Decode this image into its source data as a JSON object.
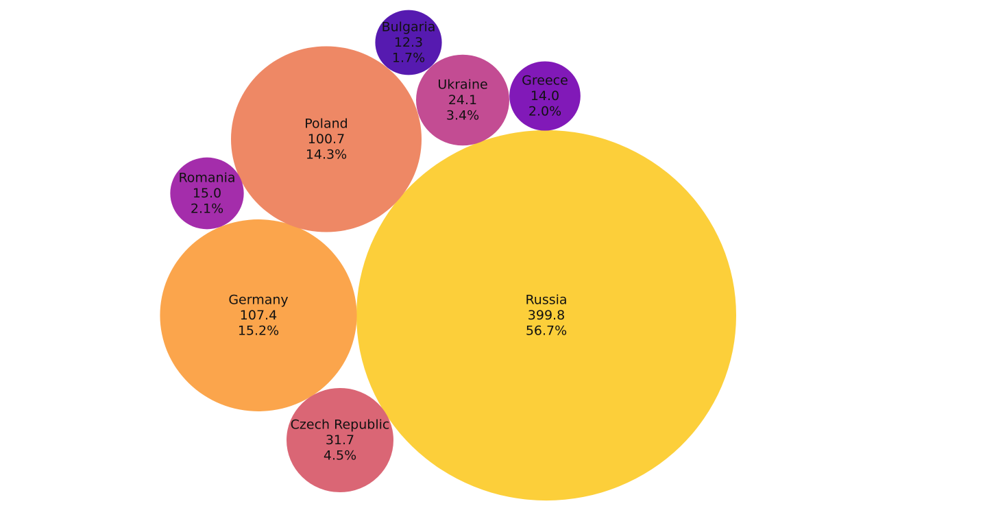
{
  "chart_data": {
    "type": "bubble",
    "title": "",
    "bubbles": [
      {
        "label": "Russia",
        "value": 399.8,
        "percent": "56.7%",
        "color": "#fccf3a"
      },
      {
        "label": "Germany",
        "value": 107.4,
        "percent": "15.2%",
        "color": "#fba54c"
      },
      {
        "label": "Poland",
        "value": 100.7,
        "percent": "14.3%",
        "color": "#ee8865"
      },
      {
        "label": "Czech Republic",
        "value": 31.7,
        "percent": "4.5%",
        "color": "#da6675"
      },
      {
        "label": "Ukraine",
        "value": 24.1,
        "percent": "3.4%",
        "color": "#c34c93"
      },
      {
        "label": "Romania",
        "value": 15.0,
        "percent": "2.1%",
        "color": "#a42dab"
      },
      {
        "label": "Greece",
        "value": 14.0,
        "percent": "2.0%",
        "color": "#8119b8"
      },
      {
        "label": "Bulgaria",
        "value": 12.3,
        "percent": "1.7%",
        "color": "#561ab0"
      }
    ]
  }
}
